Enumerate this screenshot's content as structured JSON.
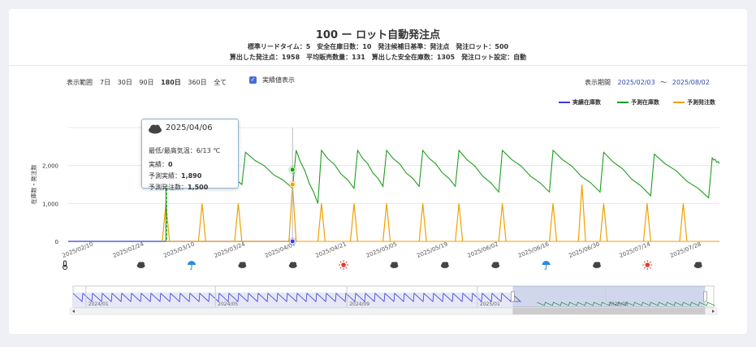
{
  "header": {
    "title": "100 ー ロット自動発注点",
    "line1": "標準リードタイム：5　安全在庫日数：10　発注候補日基準：発注点　発注ロット：500",
    "line2": "算出した発注点：1958　平均販売数量：131　算出した安全在庫数：1305　発注ロット設定：自動"
  },
  "controls": {
    "range_label": "表示範囲",
    "ranges": [
      "7日",
      "30日",
      "90日",
      "180日",
      "360日",
      "全て"
    ],
    "active_range": "180日",
    "actual_label": "実績値表示",
    "period_label": "表示期間",
    "period_start": "2025/02/03",
    "period_sep": "～",
    "period_end": "2025/08/02"
  },
  "legend": [
    {
      "name": "実績在庫数",
      "color": "#3b3bd9"
    },
    {
      "name": "予測在庫数",
      "color": "#1f9e1f"
    },
    {
      "name": "予測発注数",
      "color": "#f0a000"
    }
  ],
  "tooltip": {
    "icon": "cloud-icon",
    "date": "2025/04/06",
    "temp": "最低/最高気温：6/13 ℃",
    "actual_label": "実績：",
    "actual_value": "0",
    "pred_actual_label": "予測実績：",
    "pred_actual_value": "1,890",
    "pred_order_label": "予測発注数：",
    "pred_order_value": "1,500"
  },
  "chart_data": {
    "type": "line",
    "ylabel": "在庫数・発注数",
    "yticks": [
      "0",
      "1,000",
      "2,000"
    ],
    "ylim": [
      0,
      3000
    ],
    "xlim": [
      "2025/02/03",
      "2025/08/02"
    ],
    "x_ticks": [
      "2025/02/10",
      "2025/02/24",
      "2025/03/10",
      "2025/03/24",
      "2025/04/07",
      "2025/04/21",
      "2025/05/05",
      "2025/05/19",
      "2025/06/02",
      "2025/06/16",
      "2025/06/30",
      "2025/07/14",
      "2025/07/28"
    ],
    "weather": [
      {
        "date": "2025/02/03",
        "icon": "thermometer-icon"
      },
      {
        "date": "2025/02/24",
        "icon": "cloud-icon"
      },
      {
        "date": "2025/03/10",
        "icon": "umbrella-icon"
      },
      {
        "date": "2025/03/24",
        "icon": "cloud-icon"
      },
      {
        "date": "2025/04/07",
        "icon": "cloud-icon"
      },
      {
        "date": "2025/04/21",
        "icon": "sun-icon"
      },
      {
        "date": "2025/05/05",
        "icon": "cloud-icon"
      },
      {
        "date": "2025/05/19",
        "icon": "cloud-icon"
      },
      {
        "date": "2025/06/02",
        "icon": "cloud-icon"
      },
      {
        "date": "2025/06/16",
        "icon": "umbrella-icon"
      },
      {
        "date": "2025/06/30",
        "icon": "cloud-icon"
      },
      {
        "date": "2025/07/14",
        "icon": "sun-icon"
      },
      {
        "date": "2025/07/28",
        "icon": "cloud-icon"
      }
    ],
    "actual_stock": [
      {
        "x": "2025/02/03",
        "y": 0
      },
      {
        "x": "2025/03/02",
        "y": 0
      },
      {
        "x": "2025/04/06",
        "y": 0
      }
    ],
    "forecast_stock_cycles": [
      {
        "start": "2025/03/02",
        "peak": 2300,
        "trough": 1950
      },
      {
        "start": "2025/03/10",
        "peak": 2400,
        "trough": 1500
      },
      {
        "start": "2025/03/24",
        "peak": 2350,
        "trough": 1400
      },
      {
        "start": "2025/04/07",
        "peak": 2400,
        "trough": 1000
      },
      {
        "start": "2025/04/14",
        "peak": 2400,
        "trough": 1400
      },
      {
        "start": "2025/04/24",
        "peak": 2400,
        "trough": 1450
      },
      {
        "start": "2025/05/02",
        "peak": 2400,
        "trough": 1450
      },
      {
        "start": "2025/05/12",
        "peak": 2400,
        "trough": 1450
      },
      {
        "start": "2025/05/22",
        "peak": 2400,
        "trough": 1300
      },
      {
        "start": "2025/06/03",
        "peak": 2400,
        "trough": 1300
      },
      {
        "start": "2025/06/17",
        "peak": 2400,
        "trough": 1300
      },
      {
        "start": "2025/07/01",
        "peak": 2350,
        "trough": 1200
      },
      {
        "start": "2025/07/15",
        "peak": 2300,
        "trough": 1150
      },
      {
        "start": "2025/07/31",
        "peak": 2200,
        "trough": 2050
      }
    ],
    "forecast_orders": [
      {
        "x": "2025/03/02",
        "y": 1000
      },
      {
        "x": "2025/03/12",
        "y": 1000
      },
      {
        "x": "2025/03/22",
        "y": 1000
      },
      {
        "x": "2025/04/06",
        "y": 1500
      },
      {
        "x": "2025/04/14",
        "y": 1000
      },
      {
        "x": "2025/04/23",
        "y": 1000
      },
      {
        "x": "2025/05/02",
        "y": 1000
      },
      {
        "x": "2025/05/12",
        "y": 1000
      },
      {
        "x": "2025/05/22",
        "y": 1000
      },
      {
        "x": "2025/06/03",
        "y": 1000
      },
      {
        "x": "2025/06/17",
        "y": 1000
      },
      {
        "x": "2025/06/25",
        "y": 1500
      },
      {
        "x": "2025/07/01",
        "y": 1000
      },
      {
        "x": "2025/07/13",
        "y": 1000
      },
      {
        "x": "2025/07/23",
        "y": 1000
      }
    ],
    "hover_points": [
      {
        "series": "予測在庫数",
        "x": "2025/04/06",
        "y": 1890
      },
      {
        "series": "予測発注数",
        "x": "2025/04/06",
        "y": 1500
      },
      {
        "series": "実績在庫数",
        "x": "2025/04/06",
        "y": 0
      }
    ],
    "overview": {
      "ticks": [
        "2024/01",
        "2024/05",
        "2024/09",
        "2025/01",
        "2025/05"
      ],
      "window": [
        "2025/02/03",
        "2025/08/02"
      ]
    }
  }
}
